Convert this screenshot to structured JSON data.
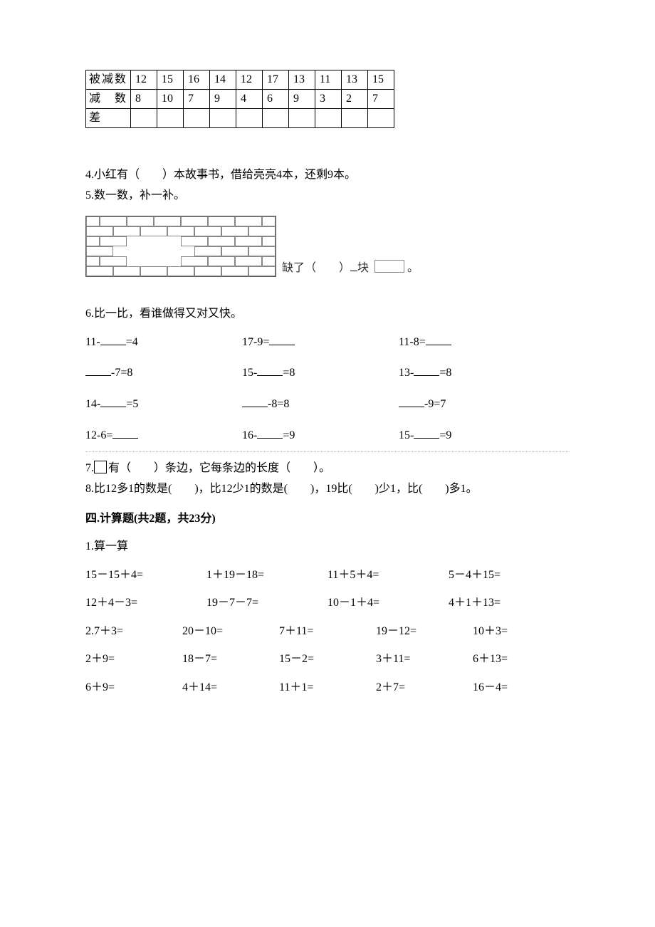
{
  "table": {
    "rows": [
      {
        "label": "被减数",
        "cells": [
          "12",
          "15",
          "16",
          "14",
          "12",
          "17",
          "13",
          "11",
          "13",
          "15"
        ]
      },
      {
        "label": "减　数",
        "cells": [
          "8",
          "10",
          "7",
          "9",
          "4",
          "6",
          "9",
          "3",
          "2",
          "7"
        ]
      },
      {
        "label": "差",
        "cells": [
          "",
          "",
          "",
          "",
          "",
          "",
          "",
          "",
          "",
          ""
        ]
      }
    ]
  },
  "q4": "4.小红有（　　）本故事书，借给亮亮4本，还剩9本。",
  "q5": "5.数一数，补一补。",
  "q5_caption_a": "缺了（　　）",
  "q5_caption_b": "块",
  "q5_caption_c": "。",
  "q6": "6.比一比，看谁做得又对又快。",
  "q6_items": [
    [
      "11-",
      "=4",
      "17-9=",
      "",
      "11-8=",
      ""
    ],
    [
      "",
      "-7=8",
      "15-",
      "=8",
      "13-",
      "=8"
    ],
    [
      "14-",
      "=5",
      "",
      "-8=8",
      "",
      "-9=7"
    ],
    [
      "12-6=",
      "",
      "16-",
      "=9",
      "15-",
      "=9"
    ]
  ],
  "q7_a": "7.",
  "q7_b": "有（　　）条边，它每条边的长度（　　）。",
  "q8": "8.比12多1的数是(　　)，比12少1的数是(　　)，19比(　　)少1，比(　　)多1。",
  "sec4": "四.计算题(共2题，共23分)",
  "p1_label": "1.算一算",
  "p1_rows": [
    [
      "15－15＋4=",
      "1＋19－18=",
      "11＋5＋4=",
      "5－4＋15="
    ],
    [
      "12＋4－3=",
      "19－7－7=",
      "10－1＋4=",
      "4＋1＋13="
    ]
  ],
  "p2_rows": [
    [
      "2.7＋3=",
      "20－10=",
      "7＋11=",
      "19－12=",
      "10＋3="
    ],
    [
      "2＋9=",
      "18－7=",
      "15－2=",
      "3＋11=",
      "6＋13="
    ],
    [
      "6＋9=",
      "4＋14=",
      "11＋1=",
      "2＋7=",
      "16－4="
    ]
  ]
}
